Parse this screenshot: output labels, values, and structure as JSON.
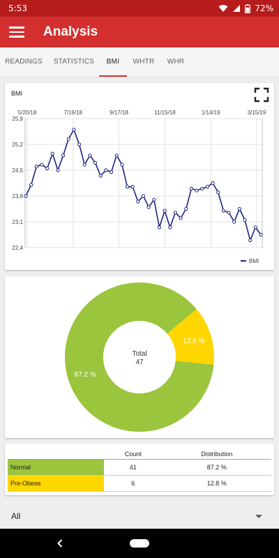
{
  "status_bar": {
    "time": "5:53",
    "battery": "72%",
    "icons": [
      "wifi-icon",
      "signal-icon",
      "battery-icon"
    ]
  },
  "app_bar": {
    "title": "Analysis",
    "menu_icon": "menu-icon"
  },
  "tabs": [
    {
      "label": "READINGS",
      "active": false
    },
    {
      "label": "STATISTICS",
      "active": false
    },
    {
      "label": "BMI",
      "active": true
    },
    {
      "label": "WHTR",
      "active": false
    },
    {
      "label": "WHR",
      "active": false
    }
  ],
  "colors": {
    "accent": "#d32f2f",
    "status": "#b71c1c",
    "line": "#1a237e",
    "normal": "#9bc53d",
    "pre_obese": "#ffd600"
  },
  "chart_data": [
    {
      "type": "line",
      "title": "BMI",
      "x_ticks": [
        "5/20/18",
        "7/19/18",
        "9/17/18",
        "11/15/18",
        "1/14/19",
        "3/15/19"
      ],
      "y_ticks": [
        "25,9",
        "25,2",
        "24,5",
        "23,8",
        "23,1",
        "22,4"
      ],
      "ylim": [
        22.4,
        25.9
      ],
      "grid": true,
      "legend": "bottom-right",
      "series": [
        {
          "name": "BMI",
          "values": [
            23.8,
            24.1,
            24.6,
            24.65,
            24.55,
            24.95,
            24.5,
            24.9,
            25.35,
            25.6,
            25.2,
            24.65,
            24.9,
            24.7,
            24.35,
            24.5,
            24.45,
            24.9,
            24.65,
            24.05,
            24.05,
            23.65,
            23.8,
            23.5,
            23.7,
            22.95,
            23.4,
            22.95,
            23.35,
            23.2,
            23.45,
            24.0,
            23.95,
            24.0,
            24.05,
            24.15,
            23.9,
            23.4,
            23.35,
            23.1,
            23.45,
            23.15,
            22.6,
            22.95,
            22.75
          ]
        }
      ]
    },
    {
      "type": "pie",
      "style": "donut",
      "center_label": "Total",
      "center_value": "47",
      "slices": [
        {
          "name": "Normal",
          "value": 41,
          "label": "87.2 %",
          "color": "#9bc53d"
        },
        {
          "name": "Pre-Obese",
          "value": 6,
          "label": "12.8 %",
          "color": "#ffd600"
        }
      ]
    },
    {
      "type": "table",
      "columns": [
        "",
        "Count",
        "Distribution"
      ],
      "rows": [
        {
          "label": "Normal",
          "count": "41",
          "distribution": "87.2 %",
          "color": "#9bc53d"
        },
        {
          "label": "Pre-Obese",
          "count": "6",
          "distribution": "12.8 %",
          "color": "#ffd600"
        }
      ]
    }
  ],
  "filter": {
    "selected": "All"
  }
}
